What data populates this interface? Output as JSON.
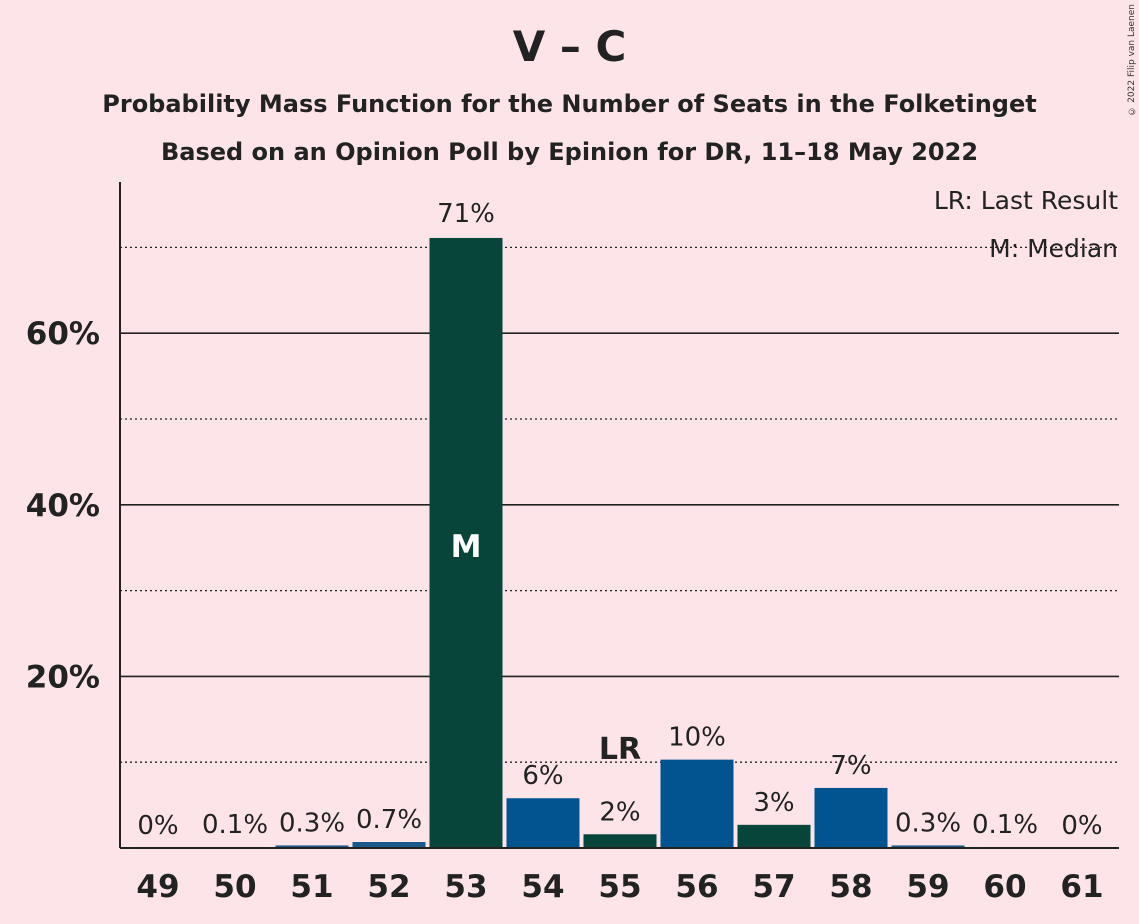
{
  "chart_data": {
    "type": "bar",
    "title": "V – C",
    "subtitle": "Probability Mass Function for the Number of Seats in the Folketinget",
    "subtitle2": "Based on an Opinion Poll by Epinion for DR, 11–18 May 2022",
    "copyright": "© 2022 Filip van Laenen",
    "categories": [
      "49",
      "50",
      "51",
      "52",
      "53",
      "54",
      "55",
      "56",
      "57",
      "58",
      "59",
      "60",
      "61"
    ],
    "values": [
      0,
      0.1,
      0.3,
      0.7,
      71,
      6,
      2,
      10,
      3,
      7,
      0.3,
      0.1,
      0
    ],
    "value_labels": [
      "0%",
      "0.1%",
      "0.3%",
      "0.7%",
      "71%",
      "6%",
      "2%",
      "10%",
      "3%",
      "7%",
      "0.3%",
      "0.1%",
      "0%"
    ],
    "bar_heights": [
      0,
      0.1,
      0.3,
      0.7,
      71.1,
      5.8,
      1.6,
      10.3,
      2.7,
      7.0,
      0.3,
      0.1,
      0
    ],
    "bar_colors": [
      "#1a5a8a",
      "#1a5a8a",
      "#1a5a8a",
      "#1a5a8a",
      "#07443a",
      "#01548f",
      "#07443a",
      "#01548f",
      "#07443a",
      "#01548f",
      "#1a5a8a",
      "#1a5a8a",
      "#1a5a8a"
    ],
    "ylim": [
      0,
      77
    ],
    "yticks": [
      20,
      40,
      60
    ],
    "ytick_labels": [
      "20%",
      "40%",
      "60%"
    ],
    "minor_gridlines": [
      10,
      30,
      50,
      70
    ],
    "median_category": "53",
    "median_marker": "M",
    "last_result_category": "55",
    "last_result_marker": "LR",
    "legend": [
      "LR: Last Result",
      "M: Median"
    ],
    "legend_position": "top-right",
    "grid": true
  },
  "colors": {
    "background": "#fde4e8",
    "dark_green": "#07443a",
    "blue": "#01548f"
  }
}
